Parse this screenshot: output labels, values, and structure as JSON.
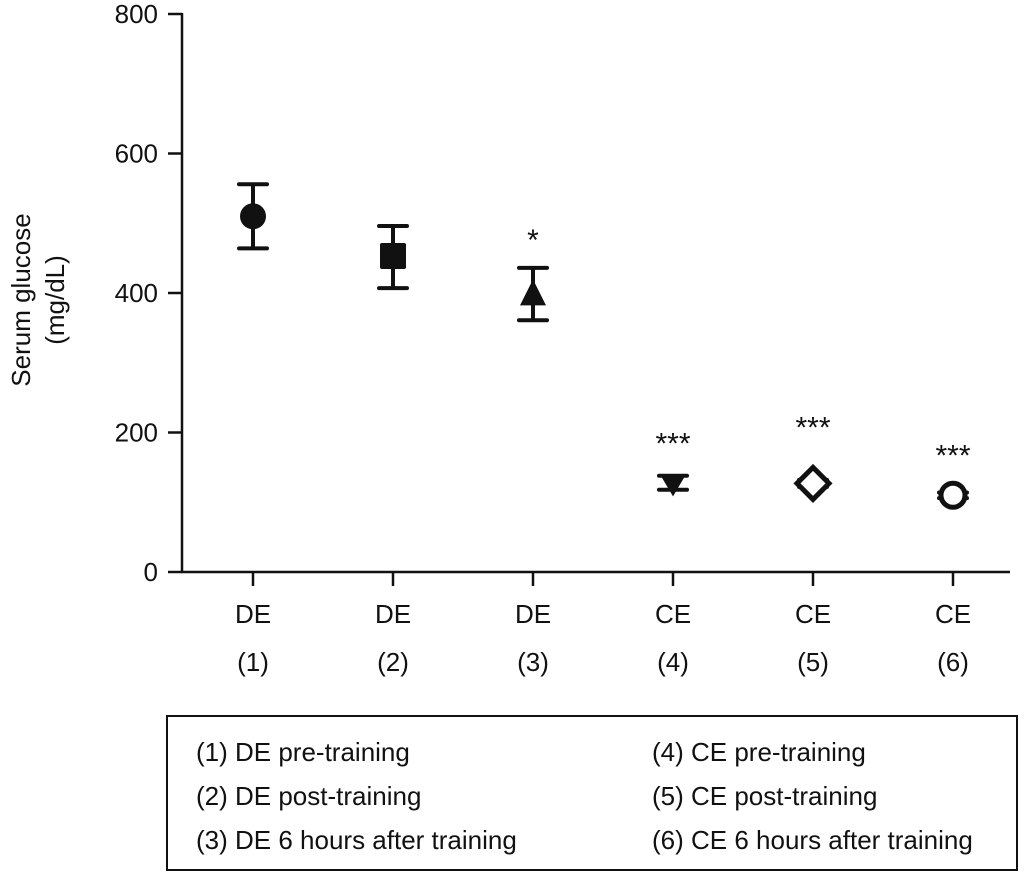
{
  "chart_data": {
    "type": "scatter",
    "title": "",
    "xlabel": "",
    "ylabel": "Serum glucose",
    "ylabel_unit": "(mg/dL)",
    "ylim": [
      0,
      800
    ],
    "yticks": [
      "0",
      "200",
      "400",
      "600",
      "800"
    ],
    "grid": false,
    "categories": [
      {
        "group": "DE",
        "num": "(1)",
        "mean": 510,
        "upper": 556,
        "lower": 464,
        "marker": "circle",
        "sig": ""
      },
      {
        "group": "DE",
        "num": "(2)",
        "mean": 453,
        "upper": 496,
        "lower": 407,
        "marker": "square",
        "sig": ""
      },
      {
        "group": "DE",
        "num": "(3)",
        "mean": 398,
        "upper": 436,
        "lower": 361,
        "marker": "triangle-up",
        "sig": "*"
      },
      {
        "group": "CE",
        "num": "(4)",
        "mean": 127,
        "upper": 138,
        "lower": 118,
        "marker": "triangle-down",
        "sig": "***"
      },
      {
        "group": "CE",
        "num": "(5)",
        "mean": 127,
        "upper": 132,
        "lower": 122,
        "marker": "diamond",
        "sig": "***"
      },
      {
        "group": "CE",
        "num": "(6)",
        "mean": 110,
        "upper": 114,
        "lower": 106,
        "marker": "circle-open",
        "sig": "***"
      }
    ],
    "legend": {
      "placement": "bottom",
      "left": [
        "(1) DE pre-training",
        "(2) DE post-training",
        "(3) DE 6 hours after training"
      ],
      "right": [
        "(4) CE pre-training",
        "(5) CE post-training",
        "(6) CE 6 hours after training"
      ]
    }
  }
}
